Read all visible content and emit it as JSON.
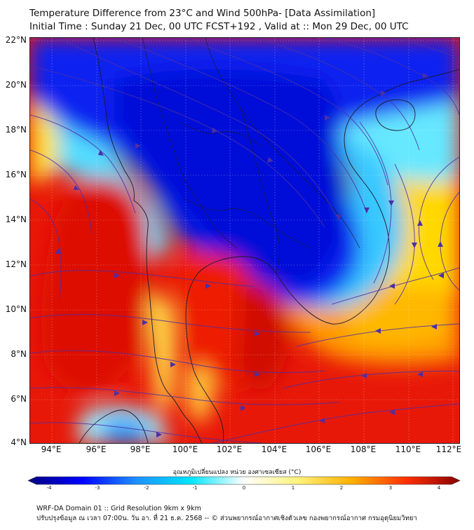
{
  "header": {
    "title_line1": "Temperature Difference from 23°C and Wind 500hPa- [Data Assimilation]",
    "title_line2": "Initial Time : Sunday 21 Dec, 00 UTC FCST+192 , Valid at ::  Mon 29 Dec, 00 UTC"
  },
  "map": {
    "lat_range": [
      4,
      22
    ],
    "lon_range": [
      93,
      113
    ],
    "lat_labels": [
      "22°N",
      "20°N",
      "18°N",
      "16°N",
      "14°N",
      "12°N",
      "10°N",
      "8°N",
      "6°N",
      "4°N"
    ],
    "lon_labels": [
      "94°E",
      "96°E",
      "98°E",
      "100°E",
      "102°E",
      "104°E",
      "106°E",
      "108°E",
      "110°E",
      "112°E"
    ],
    "field": "temperature difference from 23°C at 500hPa",
    "streamline_color": "#4b2fa8",
    "gridlines": true
  },
  "colorbar": {
    "title": "อุณหภูมิเปลี่ยนแปลง หน่วย องศาเซลเซียส (°C)",
    "min": -4,
    "max": 4,
    "ticks": [
      "-4",
      "-3",
      "-2",
      "-1",
      "0",
      "1",
      "2",
      "3",
      "4"
    ],
    "colors": [
      "#00007f",
      "#0000ff",
      "#1e90ff",
      "#00e5ff",
      "#ffffff",
      "#fff27a",
      "#ffb000",
      "#ff3000",
      "#8b0000"
    ]
  },
  "footer": {
    "line1": "WRF-DA Domain 01 :: Grid Resolution 9km x 9km",
    "line2": "ปรับปรุงข้อมูล ณ เวลา 07:00น. วัน อา. ที่ 21 ธ.ค. 2568 -- © ส่วนพยากรณ์อากาศเชิงตัวเลข กองพยากรณ์อากาศ กรมอุตุนิยมวิทยา"
  }
}
